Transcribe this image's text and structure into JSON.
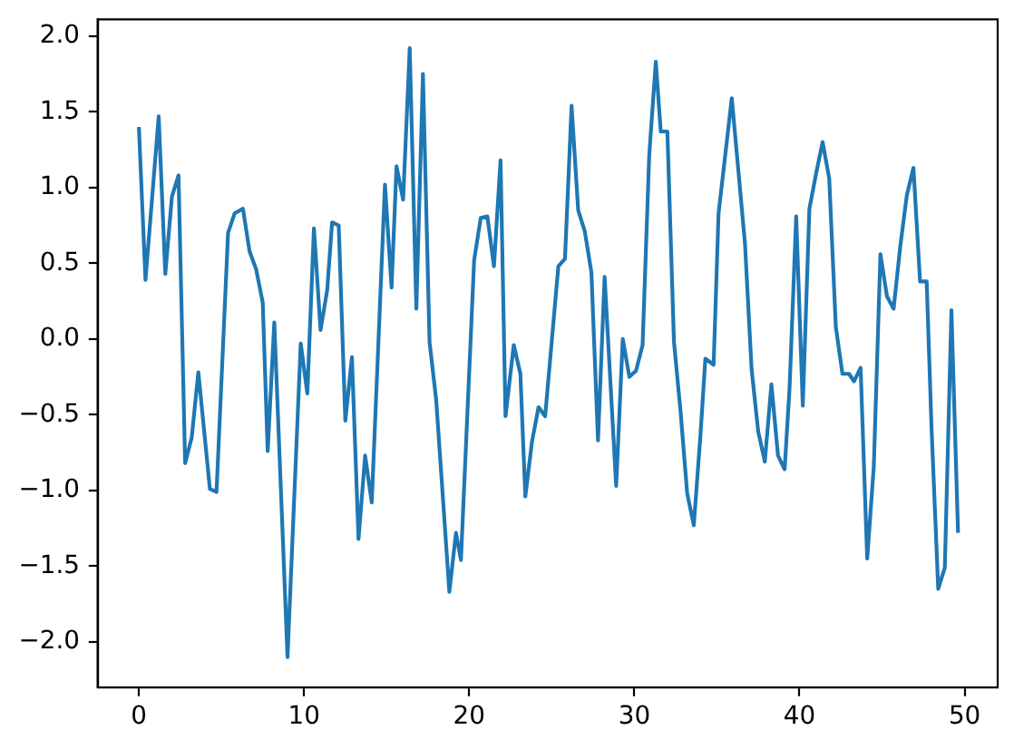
{
  "chart_data": {
    "type": "line",
    "x": [
      0.0,
      0.4,
      1.2,
      1.6,
      2.0,
      2.4,
      2.8,
      3.2,
      3.6,
      4.3,
      4.7,
      5.4,
      5.8,
      6.3,
      6.7,
      7.1,
      7.5,
      7.8,
      8.2,
      9.0,
      9.8,
      10.2,
      10.6,
      11.0,
      11.4,
      11.7,
      12.1,
      12.5,
      12.9,
      13.3,
      13.7,
      14.1,
      14.9,
      15.3,
      15.6,
      16.0,
      16.4,
      16.8,
      17.2,
      17.6,
      18.0,
      18.8,
      19.2,
      19.5,
      20.3,
      20.7,
      21.1,
      21.5,
      21.9,
      22.2,
      22.7,
      23.1,
      23.4,
      23.8,
      24.2,
      24.6,
      25.4,
      25.8,
      26.2,
      26.6,
      27.0,
      27.4,
      27.8,
      28.2,
      28.9,
      29.3,
      29.7,
      30.1,
      30.5,
      30.9,
      31.3,
      31.6,
      32.0,
      32.4,
      32.8,
      33.2,
      33.6,
      34.0,
      34.3,
      34.8,
      35.1,
      35.5,
      35.9,
      36.3,
      36.7,
      37.1,
      37.5,
      37.9,
      38.3,
      38.7,
      39.1,
      39.4,
      39.8,
      40.2,
      40.6,
      41.0,
      41.4,
      41.8,
      42.2,
      42.6,
      43.0,
      43.3,
      43.7,
      44.1,
      44.5,
      44.9,
      45.3,
      45.7,
      46.1,
      46.5,
      46.9,
      47.3,
      47.7,
      48.0,
      48.4,
      48.8,
      49.2,
      49.6
    ],
    "series": [
      {
        "color": "#1f77b4",
        "values": [
          1.4,
          0.39,
          1.47,
          0.43,
          0.94,
          1.08,
          -0.82,
          -0.65,
          -0.22,
          -0.99,
          -1.01,
          0.7,
          0.83,
          0.86,
          0.58,
          0.46,
          0.24,
          -0.74,
          0.11,
          -2.1,
          -0.03,
          -0.36,
          0.73,
          0.06,
          0.32,
          0.77,
          0.75,
          -0.54,
          -0.12,
          -1.32,
          -0.77,
          -1.08,
          1.02,
          0.34,
          1.14,
          0.92,
          1.92,
          0.2,
          1.75,
          -0.02,
          -0.4,
          -1.67,
          -1.28,
          -1.46,
          0.52,
          0.8,
          0.81,
          0.48,
          1.18,
          -0.51,
          -0.04,
          -0.23,
          -1.04,
          -0.68,
          -0.45,
          -0.51,
          0.48,
          0.53,
          1.54,
          0.85,
          0.71,
          0.44,
          -0.67,
          0.41,
          -0.97,
          0.0,
          -0.25,
          -0.21,
          -0.04,
          1.21,
          1.83,
          1.37,
          1.37,
          -0.02,
          -0.48,
          -1.02,
          -1.23,
          -0.64,
          -0.13,
          -0.17,
          0.83,
          1.21,
          1.59,
          1.11,
          0.63,
          -0.2,
          -0.61,
          -0.81,
          -0.3,
          -0.77,
          -0.86,
          -0.32,
          0.81,
          -0.44,
          0.86,
          1.09,
          1.3,
          1.06,
          0.08,
          -0.23,
          -0.23,
          -0.28,
          -0.19,
          -1.45,
          -0.84,
          0.56,
          0.28,
          0.2,
          0.61,
          0.95,
          1.13,
          0.38,
          0.38,
          -0.6,
          -1.65,
          -1.51,
          0.19,
          -1.28
        ]
      }
    ],
    "xlim": [
      -2.5,
      52.0
    ],
    "ylim": [
      -2.3,
      2.11
    ],
    "xticks": [
      0,
      10,
      20,
      30,
      40,
      50
    ],
    "yticks": [
      {
        "value": -2,
        "label": "−2.0"
      },
      {
        "value": -1.5,
        "label": "−1.5"
      },
      {
        "value": -1,
        "label": "−1.0"
      },
      {
        "value": -0.5,
        "label": "−0.5"
      },
      {
        "value": 0,
        "label": "0.0"
      },
      0.5,
      {
        "value": 1,
        "label": "1.0"
      },
      1.5,
      {
        "value": 2,
        "label": "2.0"
      }
    ],
    "line_style": "solid"
  }
}
